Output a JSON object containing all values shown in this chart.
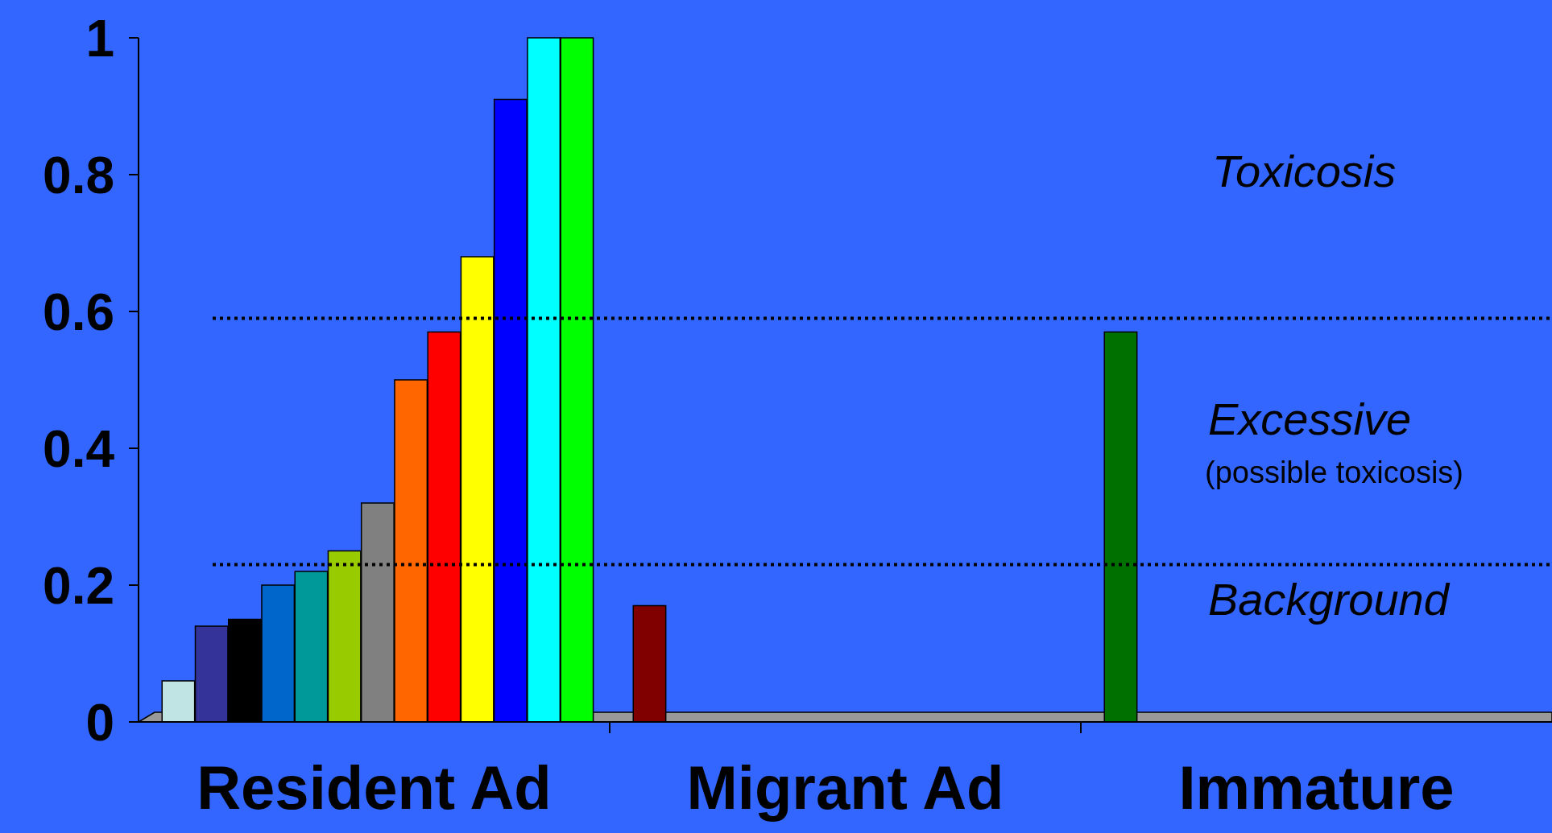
{
  "chart_data": {
    "type": "bar",
    "categories": [
      "Resident Ad",
      "Migrant Ad",
      "Immature"
    ],
    "series": [
      {
        "colors": [
          "#c0e4e4",
          "#800000",
          "#007000"
        ],
        "values": [
          0.06,
          0.17,
          0.57
        ]
      },
      {
        "color": "#333399",
        "values": [
          0.14,
          null,
          null
        ]
      },
      {
        "color": "#000000",
        "values": [
          0.15,
          null,
          null
        ]
      },
      {
        "color": "#0066cc",
        "values": [
          0.2,
          null,
          null
        ]
      },
      {
        "color": "#009999",
        "values": [
          0.22,
          null,
          null
        ]
      },
      {
        "color": "#99cc00",
        "values": [
          0.25,
          null,
          null
        ]
      },
      {
        "color": "#808080",
        "values": [
          0.32,
          null,
          null
        ]
      },
      {
        "color": "#ff6600",
        "values": [
          0.5,
          null,
          null
        ]
      },
      {
        "color": "#ff0000",
        "values": [
          0.57,
          null,
          null
        ]
      },
      {
        "color": "#ffff00",
        "values": [
          0.68,
          null,
          null
        ]
      },
      {
        "color": "#0000ff",
        "values": [
          0.91,
          null,
          null
        ]
      },
      {
        "color": "#00ffff",
        "values": [
          1,
          null,
          null
        ]
      },
      {
        "color": "#00ff00",
        "values": [
          1,
          null,
          null
        ]
      }
    ],
    "ylim": [
      0,
      1
    ],
    "yticks": [
      0,
      0.2,
      0.4,
      0.6,
      0.8,
      1
    ],
    "grid": false,
    "ref_lines": [
      {
        "axis": "y",
        "value": 0.59,
        "line_style": "dotted",
        "color": "#000000"
      },
      {
        "axis": "y",
        "value": 0.23,
        "line_style": "dotted",
        "color": "#000000"
      }
    ],
    "annotations": [
      "Toxicosis",
      "Excessive",
      "(possible toxicosis)",
      "Background"
    ]
  }
}
